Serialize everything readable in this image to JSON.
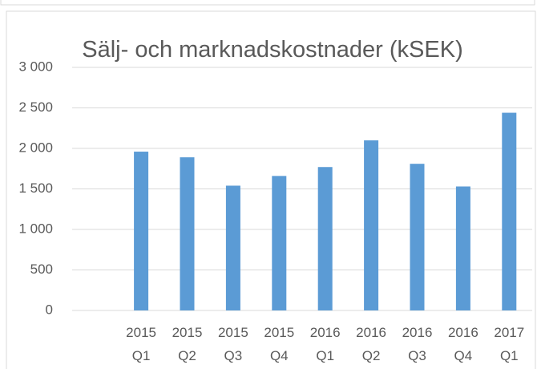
{
  "chart_data": {
    "type": "bar",
    "title": "Sälj- och marknadskostnader (kSEK)",
    "categories": [
      null,
      "2015 Q1",
      "2015 Q2",
      "2015 Q3",
      "2015 Q4",
      "2016 Q1",
      "2016 Q2",
      "2016 Q3",
      "2016 Q4",
      "2017 Q1"
    ],
    "values": [
      null,
      1960,
      1890,
      1540,
      1660,
      1770,
      2100,
      1810,
      1530,
      2440
    ],
    "color": "#5b9bd5",
    "ylim": [
      0,
      3000
    ],
    "yticks": [
      0,
      500,
      {
        "value": 1000,
        "label": "1 000"
      },
      {
        "value": 1500,
        "label": "1 500"
      },
      {
        "value": 2000,
        "label": "2 000"
      },
      {
        "value": 2500,
        "label": "2 500"
      },
      {
        "value": 3000,
        "label": "3 000"
      }
    ],
    "grid": true
  }
}
